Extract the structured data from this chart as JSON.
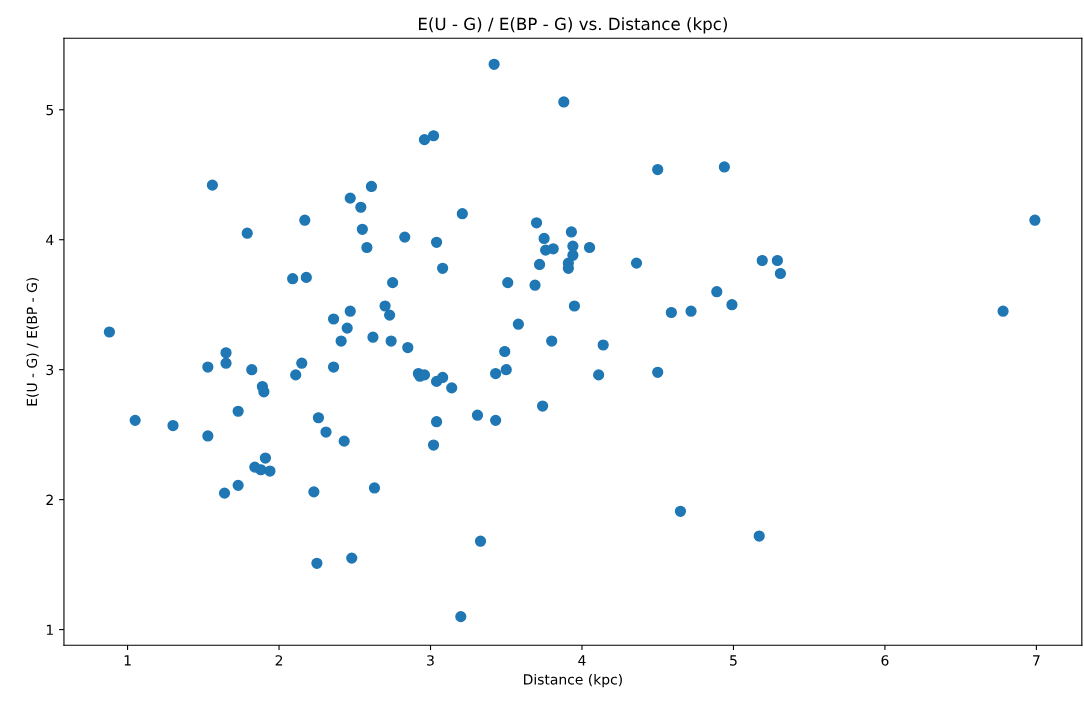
{
  "chart_data": {
    "type": "scatter",
    "title": "E(U - G) / E(BP - G) vs. Distance (kpc)",
    "xlabel": "Distance (kpc)",
    "ylabel": "E(U - G) / E(BP - G)",
    "xlim": [
      0.58,
      7.3
    ],
    "ylim": [
      0.88,
      5.55
    ],
    "xticks": [
      1,
      2,
      3,
      4,
      5,
      6,
      7
    ],
    "yticks": [
      1,
      2,
      3,
      4,
      5
    ],
    "grid": false,
    "legend": false,
    "marker": "circle",
    "series": [
      {
        "color": "#1f77b4",
        "x": [
          0.88,
          1.05,
          1.3,
          1.53,
          1.53,
          1.56,
          1.65,
          1.65,
          1.64,
          1.73,
          1.73,
          1.79,
          1.82,
          1.84,
          1.88,
          1.89,
          1.9,
          1.91,
          1.94,
          2.09,
          2.18,
          2.17,
          2.15,
          2.11,
          2.23,
          2.26,
          2.25,
          2.31,
          2.36,
          2.36,
          2.41,
          2.43,
          2.45,
          2.47,
          2.47,
          2.48,
          2.54,
          2.55,
          2.58,
          2.61,
          2.62,
          2.63,
          2.7,
          2.73,
          2.74,
          2.75,
          2.83,
          2.85,
          2.92,
          2.93,
          2.96,
          2.96,
          3.02,
          3.04,
          3.02,
          3.04,
          3.04,
          3.08,
          3.08,
          3.14,
          3.21,
          3.2,
          3.31,
          3.33,
          3.42,
          3.43,
          3.43,
          3.49,
          3.5,
          3.51,
          3.58,
          3.69,
          3.7,
          3.72,
          3.74,
          3.75,
          3.76,
          3.8,
          3.81,
          3.88,
          3.93,
          3.91,
          3.91,
          3.94,
          3.94,
          3.95,
          4.05,
          4.11,
          4.14,
          4.36,
          4.5,
          4.5,
          4.59,
          4.65,
          4.72,
          4.89,
          4.94,
          4.99,
          5.17,
          5.19,
          5.29,
          5.31,
          6.78,
          6.99
        ],
        "values": [
          3.29,
          2.61,
          2.57,
          2.49,
          3.02,
          4.42,
          3.13,
          3.05,
          2.05,
          2.11,
          2.68,
          4.05,
          3.0,
          2.25,
          2.23,
          2.87,
          2.83,
          2.32,
          2.22,
          3.7,
          3.71,
          4.15,
          3.05,
          2.96,
          2.06,
          2.63,
          1.51,
          2.52,
          3.39,
          3.02,
          3.22,
          2.45,
          3.32,
          3.45,
          4.32,
          1.55,
          4.25,
          4.08,
          3.94,
          4.41,
          3.25,
          2.09,
          3.49,
          3.42,
          3.22,
          3.67,
          4.02,
          3.17,
          2.97,
          2.95,
          2.96,
          4.77,
          4.8,
          3.98,
          2.42,
          2.6,
          2.91,
          3.78,
          2.94,
          2.86,
          4.2,
          1.1,
          2.65,
          1.68,
          5.35,
          2.97,
          2.61,
          3.14,
          3.0,
          3.67,
          3.35,
          3.65,
          4.13,
          3.81,
          2.72,
          4.01,
          3.92,
          3.22,
          3.93,
          5.06,
          4.06,
          3.82,
          3.78,
          3.95,
          3.88,
          3.49,
          3.94,
          2.96,
          3.19,
          3.82,
          4.54,
          2.98,
          3.44,
          1.91,
          3.45,
          3.6,
          4.56,
          3.5,
          1.72,
          3.84,
          3.84,
          3.74,
          3.45,
          4.15
        ]
      }
    ]
  }
}
